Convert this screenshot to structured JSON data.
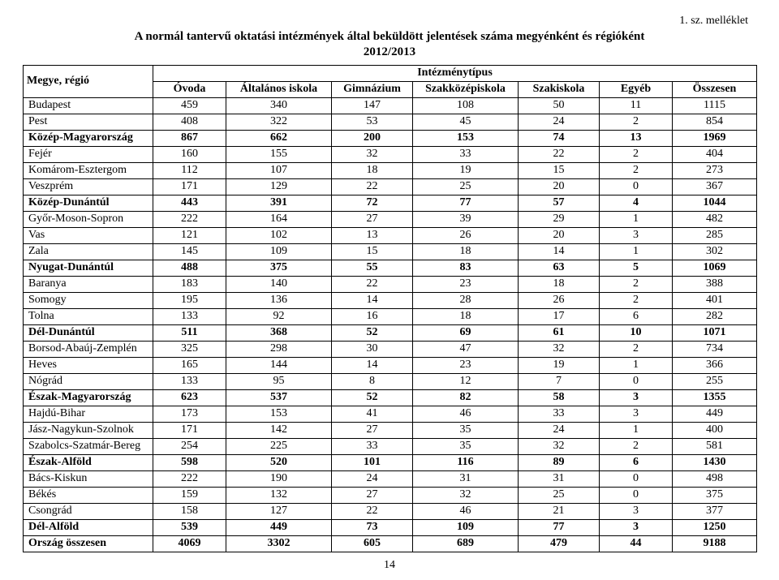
{
  "annex": "1. sz. melléklet",
  "title_line1": "A normál tantervű oktatási intézmények által beküldött jelentések száma megyénként és régióként",
  "title_line2": "2012/2013",
  "header": {
    "rowhead": "Megye, régió",
    "group": "Intézménytípus",
    "cols": [
      "Óvoda",
      "Általános iskola",
      "Gimnázium",
      "Szakközépiskola",
      "Szakiskola",
      "Egyéb",
      "Összesen"
    ]
  },
  "rows": [
    {
      "name": "Budapest",
      "vals": [
        459,
        340,
        147,
        108,
        50,
        11,
        1115
      ],
      "bold": false
    },
    {
      "name": "Pest",
      "vals": [
        408,
        322,
        53,
        45,
        24,
        2,
        854
      ],
      "bold": false
    },
    {
      "name": "Közép-Magyarország",
      "vals": [
        867,
        662,
        200,
        153,
        74,
        13,
        1969
      ],
      "bold": true
    },
    {
      "name": "Fejér",
      "vals": [
        160,
        155,
        32,
        33,
        22,
        2,
        404
      ],
      "bold": false
    },
    {
      "name": "Komárom-Esztergom",
      "vals": [
        112,
        107,
        18,
        19,
        15,
        2,
        273
      ],
      "bold": false
    },
    {
      "name": "Veszprém",
      "vals": [
        171,
        129,
        22,
        25,
        20,
        0,
        367
      ],
      "bold": false
    },
    {
      "name": "Közép-Dunántúl",
      "vals": [
        443,
        391,
        72,
        77,
        57,
        4,
        1044
      ],
      "bold": true
    },
    {
      "name": "Győr-Moson-Sopron",
      "vals": [
        222,
        164,
        27,
        39,
        29,
        1,
        482
      ],
      "bold": false
    },
    {
      "name": "Vas",
      "vals": [
        121,
        102,
        13,
        26,
        20,
        3,
        285
      ],
      "bold": false
    },
    {
      "name": "Zala",
      "vals": [
        145,
        109,
        15,
        18,
        14,
        1,
        302
      ],
      "bold": false
    },
    {
      "name": "Nyugat-Dunántúl",
      "vals": [
        488,
        375,
        55,
        83,
        63,
        5,
        1069
      ],
      "bold": true
    },
    {
      "name": "Baranya",
      "vals": [
        183,
        140,
        22,
        23,
        18,
        2,
        388
      ],
      "bold": false
    },
    {
      "name": "Somogy",
      "vals": [
        195,
        136,
        14,
        28,
        26,
        2,
        401
      ],
      "bold": false
    },
    {
      "name": "Tolna",
      "vals": [
        133,
        92,
        16,
        18,
        17,
        6,
        282
      ],
      "bold": false
    },
    {
      "name": "Dél-Dunántúl",
      "vals": [
        511,
        368,
        52,
        69,
        61,
        10,
        1071
      ],
      "bold": true
    },
    {
      "name": "Borsod-Abaúj-Zemplén",
      "vals": [
        325,
        298,
        30,
        47,
        32,
        2,
        734
      ],
      "bold": false
    },
    {
      "name": "Heves",
      "vals": [
        165,
        144,
        14,
        23,
        19,
        1,
        366
      ],
      "bold": false
    },
    {
      "name": "Nógrád",
      "vals": [
        133,
        95,
        8,
        12,
        7,
        0,
        255
      ],
      "bold": false
    },
    {
      "name": "Észak-Magyarország",
      "vals": [
        623,
        537,
        52,
        82,
        58,
        3,
        1355
      ],
      "bold": true
    },
    {
      "name": "Hajdú-Bihar",
      "vals": [
        173,
        153,
        41,
        46,
        33,
        3,
        449
      ],
      "bold": false
    },
    {
      "name": "Jász-Nagykun-Szolnok",
      "vals": [
        171,
        142,
        27,
        35,
        24,
        1,
        400
      ],
      "bold": false
    },
    {
      "name": "Szabolcs-Szatmár-Bereg",
      "vals": [
        254,
        225,
        33,
        35,
        32,
        2,
        581
      ],
      "bold": false
    },
    {
      "name": "Észak-Alföld",
      "vals": [
        598,
        520,
        101,
        116,
        89,
        6,
        1430
      ],
      "bold": true
    },
    {
      "name": "Bács-Kiskun",
      "vals": [
        222,
        190,
        24,
        31,
        31,
        0,
        498
      ],
      "bold": false
    },
    {
      "name": "Békés",
      "vals": [
        159,
        132,
        27,
        32,
        25,
        0,
        375
      ],
      "bold": false
    },
    {
      "name": "Csongrád",
      "vals": [
        158,
        127,
        22,
        46,
        21,
        3,
        377
      ],
      "bold": false
    },
    {
      "name": "Dél-Alföld",
      "vals": [
        539,
        449,
        73,
        109,
        77,
        3,
        1250
      ],
      "bold": true
    },
    {
      "name": "Ország összesen",
      "vals": [
        4069,
        3302,
        605,
        689,
        479,
        44,
        9188
      ],
      "bold": true
    }
  ],
  "page_number": "14"
}
